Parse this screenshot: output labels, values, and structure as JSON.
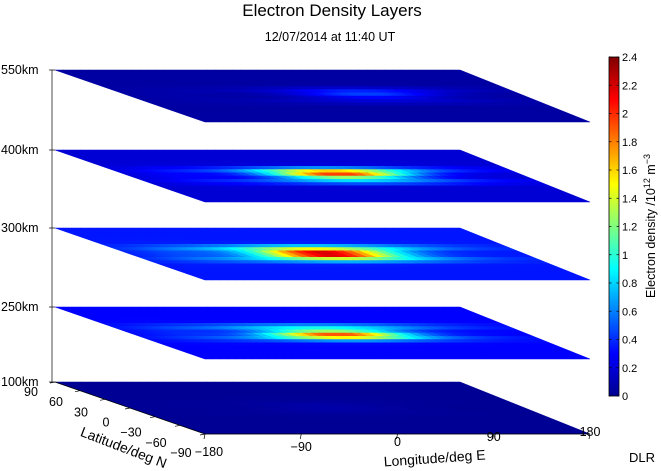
{
  "chart_data": {
    "type": "heatmap",
    "title": "Electron Density Layers",
    "subtitle": "12/07/2014 at 11:40 UT",
    "xlabel": "Longitude/deg E",
    "ylabel": "Latitude/deg N",
    "colorbar_label": "Electron density /10^12 m^-3",
    "colorbar_label_parts": {
      "base": "Electron density /10",
      "exp1": "12",
      "mid": " m",
      "exp2": "−3"
    },
    "colormap": "jet",
    "colorbar_range": [
      0,
      2.4
    ],
    "colorbar_ticks": [
      "0",
      "0.2",
      "0.4",
      "0.6",
      "0.8",
      "1",
      "1.2",
      "1.4",
      "1.6",
      "1.8",
      "2",
      "2.2",
      "2.4"
    ],
    "x_range": [
      -180,
      180
    ],
    "x_ticks": [
      "−180",
      "−90",
      "0",
      "90",
      "180"
    ],
    "y_range": [
      -90,
      90
    ],
    "y_ticks": [
      "90",
      "60",
      "30",
      "0",
      "−30",
      "−60",
      "−90"
    ],
    "grid": false,
    "layers": [
      {
        "label": "550km",
        "altitude_km": 550,
        "peak_density": 0.45,
        "peak_lon": 40,
        "peak_lat": 5,
        "background": 0.08
      },
      {
        "label": "400km",
        "altitude_km": 400,
        "peak_density": 1.95,
        "peak_lon": 15,
        "peak_lat": 5,
        "background": 0.2
      },
      {
        "label": "300km",
        "altitude_km": 300,
        "peak_density": 2.4,
        "peak_lon": 0,
        "peak_lat": 0,
        "background": 0.35
      },
      {
        "label": "250km",
        "altitude_km": 250,
        "peak_density": 1.9,
        "peak_lon": 5,
        "peak_lat": -5,
        "background": 0.3
      },
      {
        "label": "100km",
        "altitude_km": 100,
        "peak_density": 0.1,
        "peak_lon": 0,
        "peak_lat": 0,
        "background": 0.05
      }
    ],
    "credit": "DLR"
  }
}
